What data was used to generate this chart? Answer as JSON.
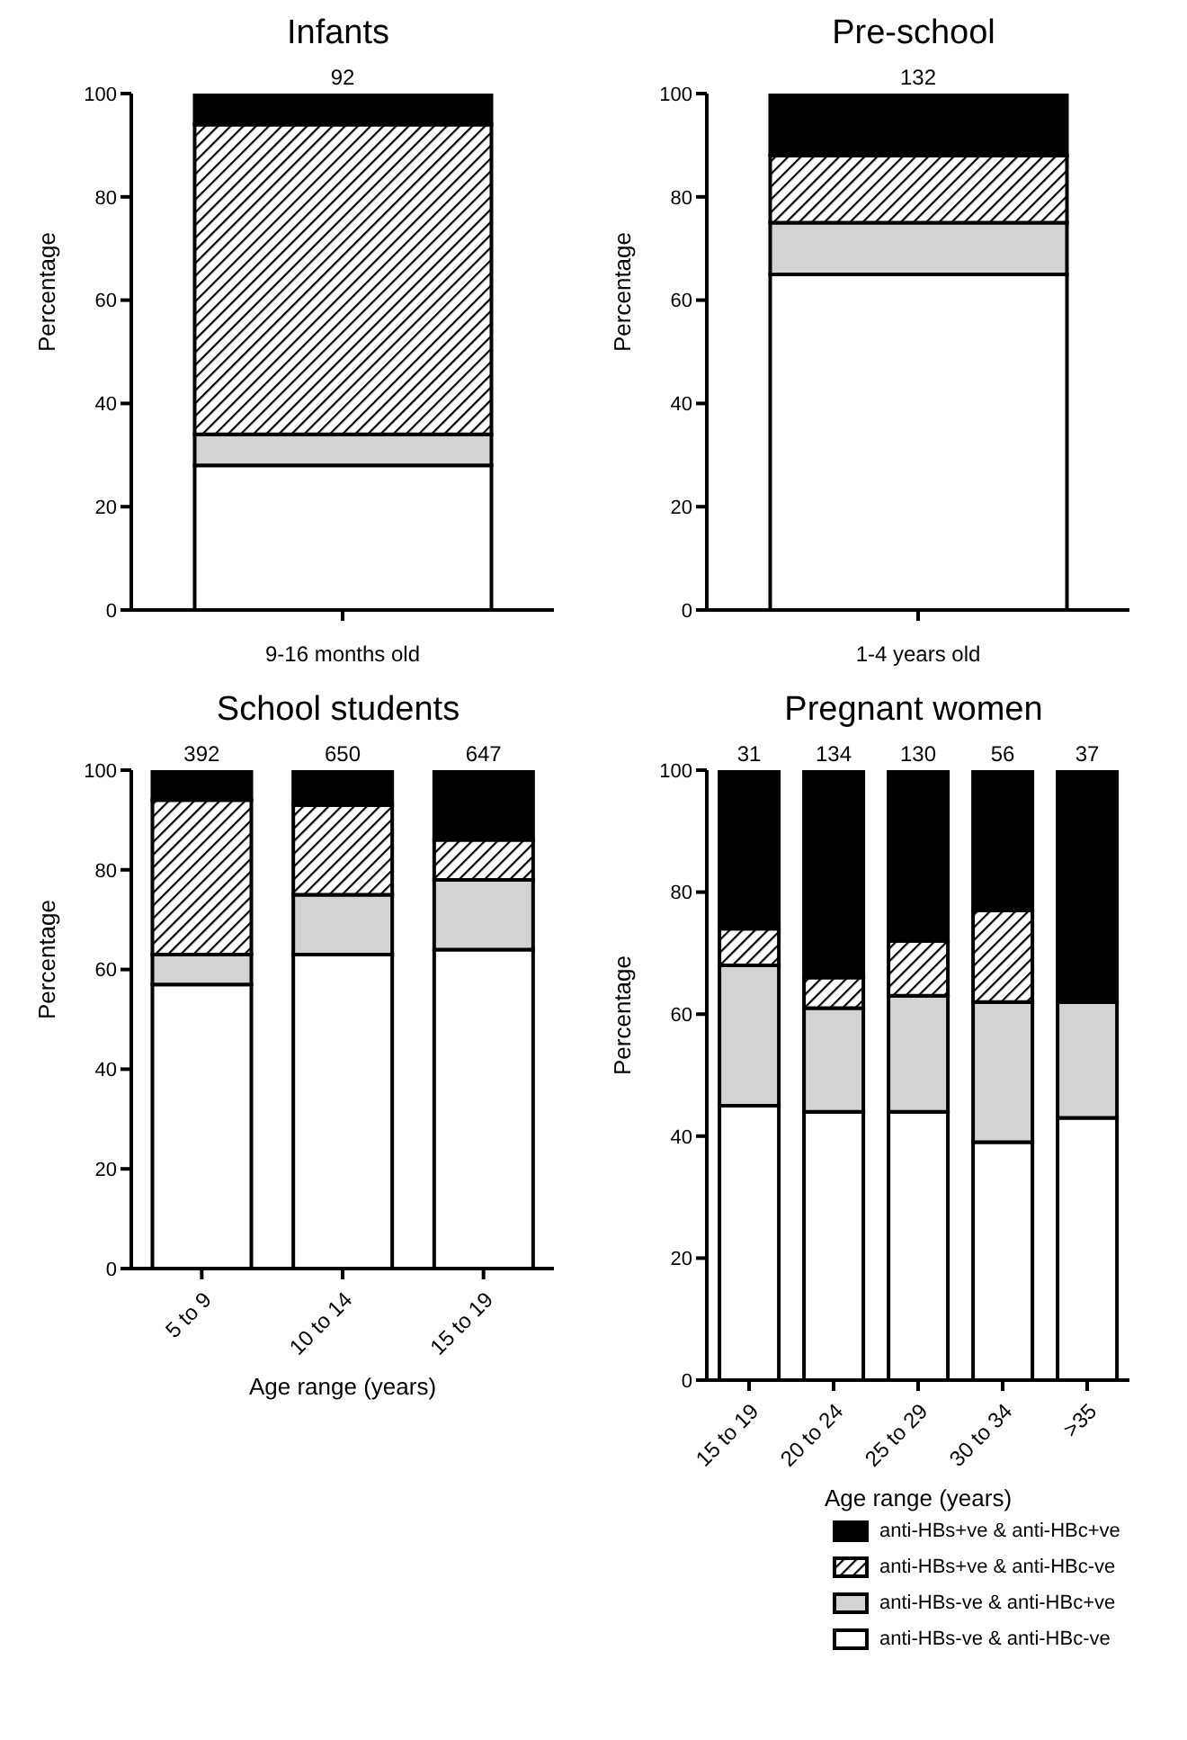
{
  "chart_data": [
    {
      "type": "bar",
      "title": "Infants",
      "categories": [
        "9-16 months old"
      ],
      "ylabel": "Percentage",
      "stacked": true,
      "ylim": [
        0,
        100
      ],
      "yticks": [
        0,
        20,
        40,
        60,
        80,
        100
      ],
      "annotations": [
        {
          "text": "92",
          "x": "9-16 months old",
          "y": 100
        }
      ],
      "series": [
        {
          "color": "#ffffff",
          "values": [
            28
          ]
        },
        {
          "color": "#d3d3d3",
          "values": [
            6
          ]
        },
        {
          "color": "#000000",
          "values": [
            60
          ]
        },
        {
          "color": "#000000",
          "values": [
            6
          ]
        }
      ]
    },
    {
      "type": "bar",
      "title": "Pre-school",
      "categories": [
        "1-4 years old"
      ],
      "ylabel": "Percentage",
      "stacked": true,
      "ylim": [
        0,
        100
      ],
      "yticks": [
        0,
        20,
        40,
        60,
        80,
        100
      ],
      "annotations": [
        {
          "text": "132",
          "x": "1-4 years old",
          "y": 100
        }
      ],
      "series": [
        {
          "color": "#ffffff",
          "values": [
            65
          ]
        },
        {
          "color": "#d3d3d3",
          "values": [
            10
          ]
        },
        {
          "color": "#000000",
          "values": [
            13
          ]
        },
        {
          "color": "#000000",
          "values": [
            12
          ]
        }
      ]
    },
    {
      "type": "bar",
      "title": "School students",
      "categories": [
        "5 to 9",
        "10 to 14",
        "15 to 19"
      ],
      "xlabel": "Age range (years)",
      "ylabel": "Percentage",
      "stacked": true,
      "ylim": [
        0,
        100
      ],
      "yticks": [
        0,
        20,
        40,
        60,
        80,
        100
      ],
      "annotations": [
        {
          "text": "392",
          "x": "5 to 9",
          "y": 100
        },
        {
          "text": "650",
          "x": "10 to 14",
          "y": 100
        },
        {
          "text": "647",
          "x": "15 to 19",
          "y": 100
        }
      ],
      "series": [
        {
          "color": "#ffffff",
          "values": [
            57,
            63,
            64
          ]
        },
        {
          "color": "#d3d3d3",
          "values": [
            6,
            12,
            14
          ]
        },
        {
          "color": "#000000",
          "values": [
            31,
            18,
            8
          ]
        },
        {
          "color": "#000000",
          "values": [
            6,
            7,
            14
          ]
        }
      ]
    },
    {
      "type": "bar",
      "title": "Pregnant women",
      "categories": [
        "15 to 19",
        "20 to 24",
        "25 to 29",
        "30 to 34",
        ">35"
      ],
      "xlabel": "Age range (years)",
      "ylabel": "Percentage",
      "stacked": true,
      "ylim": [
        0,
        100
      ],
      "yticks": [
        0,
        20,
        40,
        60,
        80,
        100
      ],
      "annotations": [
        {
          "text": "31",
          "x": "15 to 19",
          "y": 100
        },
        {
          "text": "134",
          "x": "20 to 24",
          "y": 100
        },
        {
          "text": "130",
          "x": "25 to 29",
          "y": 100
        },
        {
          "text": "56",
          "x": "30 to 34",
          "y": 100
        },
        {
          "text": "37",
          "x": ">35",
          "y": 100
        }
      ],
      "legend": "bottom right",
      "series": [
        {
          "name": "anti-HBs-ve & anti-HBc-ve",
          "color": "#ffffff",
          "values": [
            45,
            44,
            44,
            39,
            43
          ]
        },
        {
          "name": "anti-HBs-ve & anti-HBc+ve",
          "color": "#d3d3d3",
          "values": [
            23,
            17,
            19,
            23,
            19
          ]
        },
        {
          "name": "anti-HBs+ve & anti-HBc-ve",
          "color": "#000000",
          "values": [
            6,
            5,
            9,
            15,
            0
          ]
        },
        {
          "name": "anti-HBs+ve & anti-HBc+ve",
          "color": "#000000",
          "values": [
            26,
            34,
            28,
            23,
            38
          ]
        }
      ]
    }
  ]
}
